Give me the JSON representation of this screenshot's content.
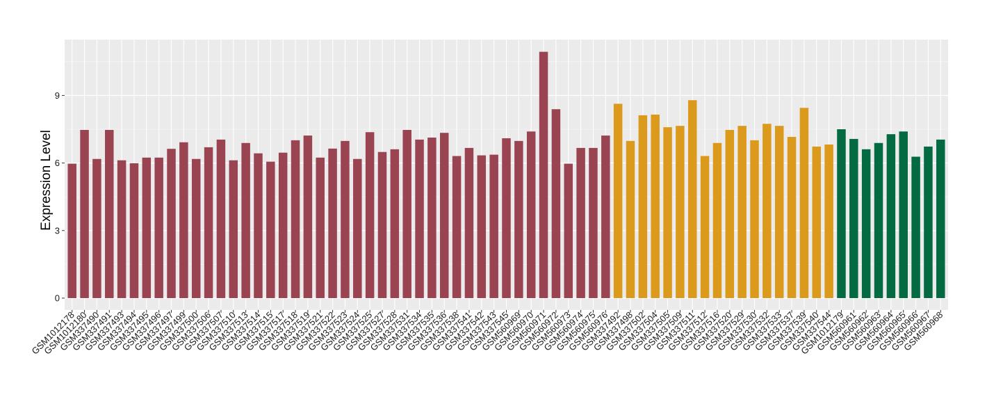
{
  "chart_data": {
    "type": "bar",
    "title": "",
    "xlabel": "",
    "ylabel": "Expression Level",
    "ylim": [
      0,
      11.5
    ],
    "yticks": [
      0,
      3,
      6,
      9
    ],
    "grid": true,
    "legend": "none",
    "colors": {
      "panel": "#ebebeb",
      "grid_major": "#ffffff",
      "group1": "#9b4451",
      "group2": "#dc9a1c",
      "group3": "#046a42"
    },
    "categories": [
      "GSM1012178",
      "GSM1012180",
      "GSM337490",
      "GSM337491",
      "GSM337493",
      "GSM337494",
      "GSM337495",
      "GSM337496",
      "GSM337497",
      "GSM337499",
      "GSM337500",
      "GSM337506",
      "GSM337507",
      "GSM337510",
      "GSM337513",
      "GSM337514",
      "GSM337515",
      "GSM337517",
      "GSM337518",
      "GSM337519",
      "GSM337521",
      "GSM337522",
      "GSM337523",
      "GSM337524",
      "GSM337525",
      "GSM337527",
      "GSM337528",
      "GSM337531",
      "GSM337534",
      "GSM337535",
      "GSM337536",
      "GSM337538",
      "GSM337541",
      "GSM337542",
      "GSM337543",
      "GSM337545",
      "GSM560969",
      "GSM560970",
      "GSM560971",
      "GSM560972",
      "GSM560973",
      "GSM560974",
      "GSM560975",
      "GSM560976",
      "GSM337492",
      "GSM337498",
      "GSM337502",
      "GSM337504",
      "GSM337505",
      "GSM337509",
      "GSM337511",
      "GSM337512",
      "GSM337516",
      "GSM337520",
      "GSM337529",
      "GSM337530",
      "GSM337532",
      "GSM337533",
      "GSM337537",
      "GSM337539",
      "GSM337540",
      "GSM337544",
      "GSM1012179",
      "GSM560961",
      "GSM560962",
      "GSM560963",
      "GSM560964",
      "GSM560965",
      "GSM560966",
      "GSM560967",
      "GSM560968"
    ],
    "values": [
      5.97,
      7.47,
      6.18,
      7.47,
      6.12,
      5.99,
      6.24,
      6.24,
      6.63,
      6.92,
      6.18,
      6.7,
      7.04,
      6.12,
      6.89,
      6.43,
      6.06,
      6.46,
      7.01,
      7.22,
      6.24,
      6.64,
      6.98,
      6.18,
      7.37,
      6.49,
      6.61,
      7.47,
      7.04,
      7.13,
      7.34,
      6.31,
      6.67,
      6.34,
      6.37,
      7.1,
      6.98,
      7.4,
      10.94,
      8.39,
      5.97,
      6.67,
      6.67,
      7.22,
      8.63,
      6.98,
      8.12,
      8.15,
      7.59,
      7.65,
      8.79,
      6.31,
      6.89,
      7.47,
      7.65,
      7.01,
      7.74,
      7.65,
      7.16,
      8.45,
      6.73,
      6.82,
      7.5,
      7.07,
      6.61,
      6.89,
      7.28,
      7.4,
      6.28,
      6.73,
      7.04
    ],
    "groups": [
      1,
      1,
      1,
      1,
      1,
      1,
      1,
      1,
      1,
      1,
      1,
      1,
      1,
      1,
      1,
      1,
      1,
      1,
      1,
      1,
      1,
      1,
      1,
      1,
      1,
      1,
      1,
      1,
      1,
      1,
      1,
      1,
      1,
      1,
      1,
      1,
      1,
      1,
      1,
      1,
      1,
      1,
      1,
      1,
      2,
      2,
      2,
      2,
      2,
      2,
      2,
      2,
      2,
      2,
      2,
      2,
      2,
      2,
      2,
      2,
      2,
      2,
      3,
      3,
      3,
      3,
      3,
      3,
      3,
      3,
      3
    ]
  }
}
